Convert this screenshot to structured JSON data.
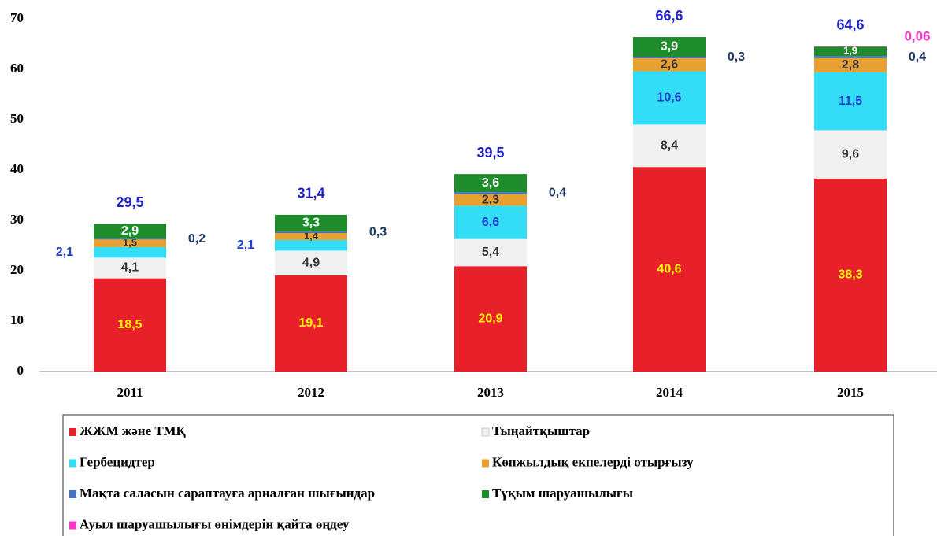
{
  "chart_data": {
    "type": "stacked_bar",
    "categories": [
      "2011",
      "2012",
      "2013",
      "2014",
      "2015"
    ],
    "series": [
      {
        "name": "ЖЖМ және ТМҚ",
        "color": "#e8202a",
        "values": [
          18.5,
          19.1,
          20.9,
          40.6,
          38.3
        ],
        "value_labels": [
          "18,5",
          "19,1",
          "20,9",
          "40,6",
          "38,3"
        ]
      },
      {
        "name": "Тыңайтқыштар",
        "color": "#f0f0f0",
        "values": [
          4.1,
          4.9,
          5.4,
          8.4,
          9.6
        ],
        "value_labels": [
          "4,1",
          "4,9",
          "5,4",
          "8,4",
          "9,6"
        ]
      },
      {
        "name": "Гербецидтер",
        "color": "#33ddf5",
        "values": [
          2.1,
          2.1,
          6.6,
          10.6,
          11.5
        ],
        "value_labels": [
          "2,1",
          "2,1",
          "6,6",
          "10,6",
          "11,5"
        ]
      },
      {
        "name": "Көпжылдық екпелерді отырғызу",
        "color": "#e8a030",
        "values": [
          1.5,
          1.4,
          2.3,
          2.6,
          2.8
        ],
        "value_labels": [
          "1,5",
          "1,4",
          "2,3",
          "2,6",
          "2,8"
        ]
      },
      {
        "name": "Мақта саласын сараптауға арналған шығындар",
        "color": "#4472c4",
        "values": [
          0.2,
          0.3,
          0.4,
          0.3,
          0.4
        ],
        "value_labels": [
          "0,2",
          "0,3",
          "0,4",
          "0,3",
          "0,4"
        ]
      },
      {
        "name": "Тұқым шаруашылығы",
        "color": "#1e8c2a",
        "values": [
          2.9,
          3.3,
          3.6,
          3.9,
          1.9
        ],
        "value_labels": [
          "2,9",
          "3,3",
          "3,6",
          "3,9",
          "1,9"
        ]
      },
      {
        "name": "Ауыл шаруашылығы өнімдерін қайта өңдеу",
        "color": "#ff33cc",
        "values": [
          null,
          null,
          null,
          null,
          0.06
        ],
        "value_labels": [
          null,
          null,
          null,
          null,
          "0,06"
        ]
      }
    ],
    "totals": {
      "values": [
        29.5,
        31.4,
        39.5,
        66.6,
        64.6
      ],
      "value_labels": [
        "29,5",
        "31,4",
        "39,5",
        "66,6",
        "64,6"
      ]
    },
    "ylim": [
      0,
      70
    ],
    "yticks": [
      0,
      10,
      20,
      30,
      40,
      50,
      60,
      70
    ],
    "grid": false,
    "legend": "bottom"
  }
}
